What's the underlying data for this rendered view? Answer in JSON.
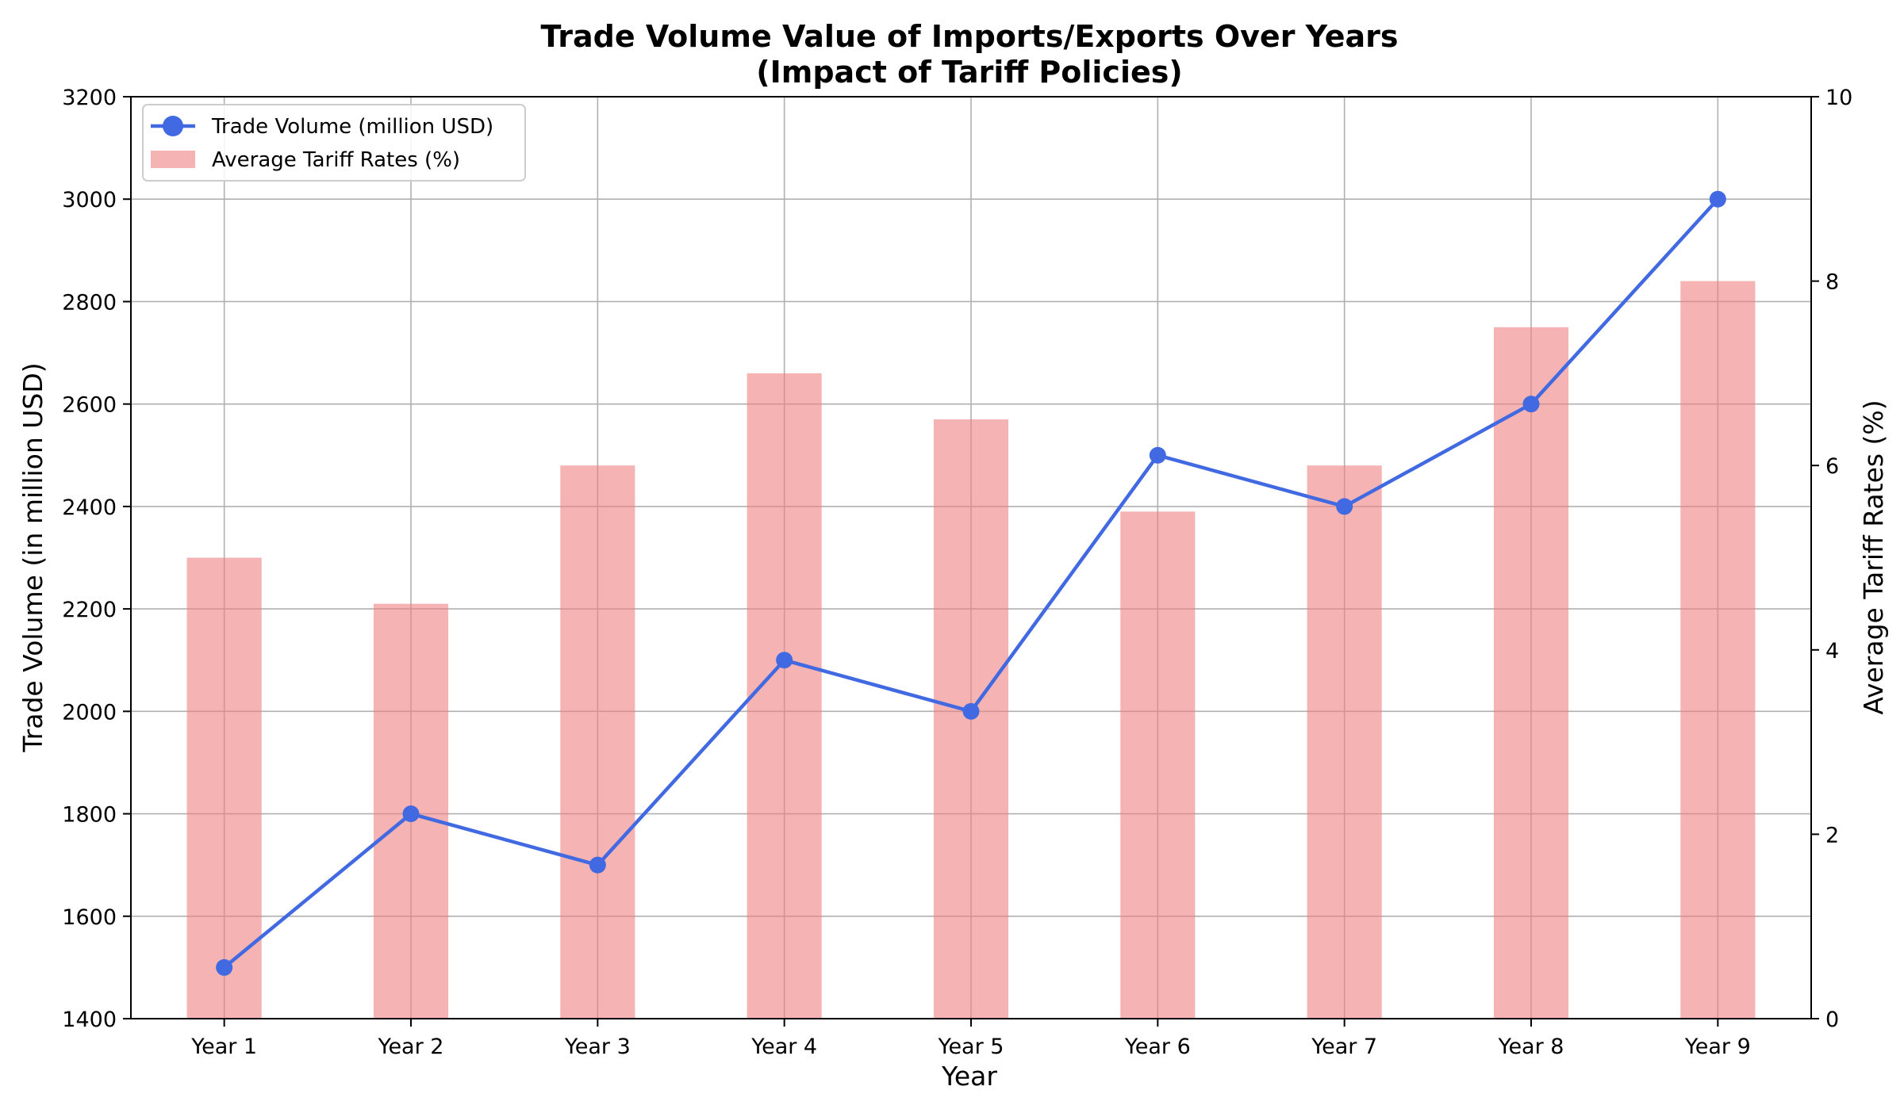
{
  "chart_data": {
    "type": "bar",
    "title_lines": [
      "Trade Volume Value of Imports/Exports Over Years",
      "(Impact of Tariff Policies)"
    ],
    "xlabel": "Year",
    "ylabel_left": "Trade Volume (in million USD)",
    "ylabel_right": "Average Tariff Rates (%)",
    "categories": [
      "Year 1",
      "Year 2",
      "Year 3",
      "Year 4",
      "Year 5",
      "Year 6",
      "Year 7",
      "Year 8",
      "Year 9"
    ],
    "ylim_left": [
      1400,
      3200
    ],
    "yticks_left": [
      1400,
      1600,
      1800,
      2000,
      2200,
      2400,
      2600,
      2800,
      3000,
      3200
    ],
    "ylim_right": [
      0,
      10
    ],
    "yticks_right": [
      0,
      2,
      4,
      6,
      8,
      10
    ],
    "grid": true,
    "legend_position": "top-left",
    "series": [
      {
        "name": "Trade Volume (million USD)",
        "type": "line",
        "axis": "left",
        "color": "#4169e1",
        "values": [
          1500,
          1800,
          1700,
          2100,
          2000,
          2500,
          2400,
          2600,
          3000
        ]
      },
      {
        "name": "Average Tariff Rates (%)",
        "type": "bar",
        "axis": "right",
        "color": "#f08080",
        "values": [
          5.0,
          4.5,
          6.0,
          7.0,
          6.5,
          5.5,
          6.0,
          7.5,
          8.0
        ]
      }
    ]
  }
}
